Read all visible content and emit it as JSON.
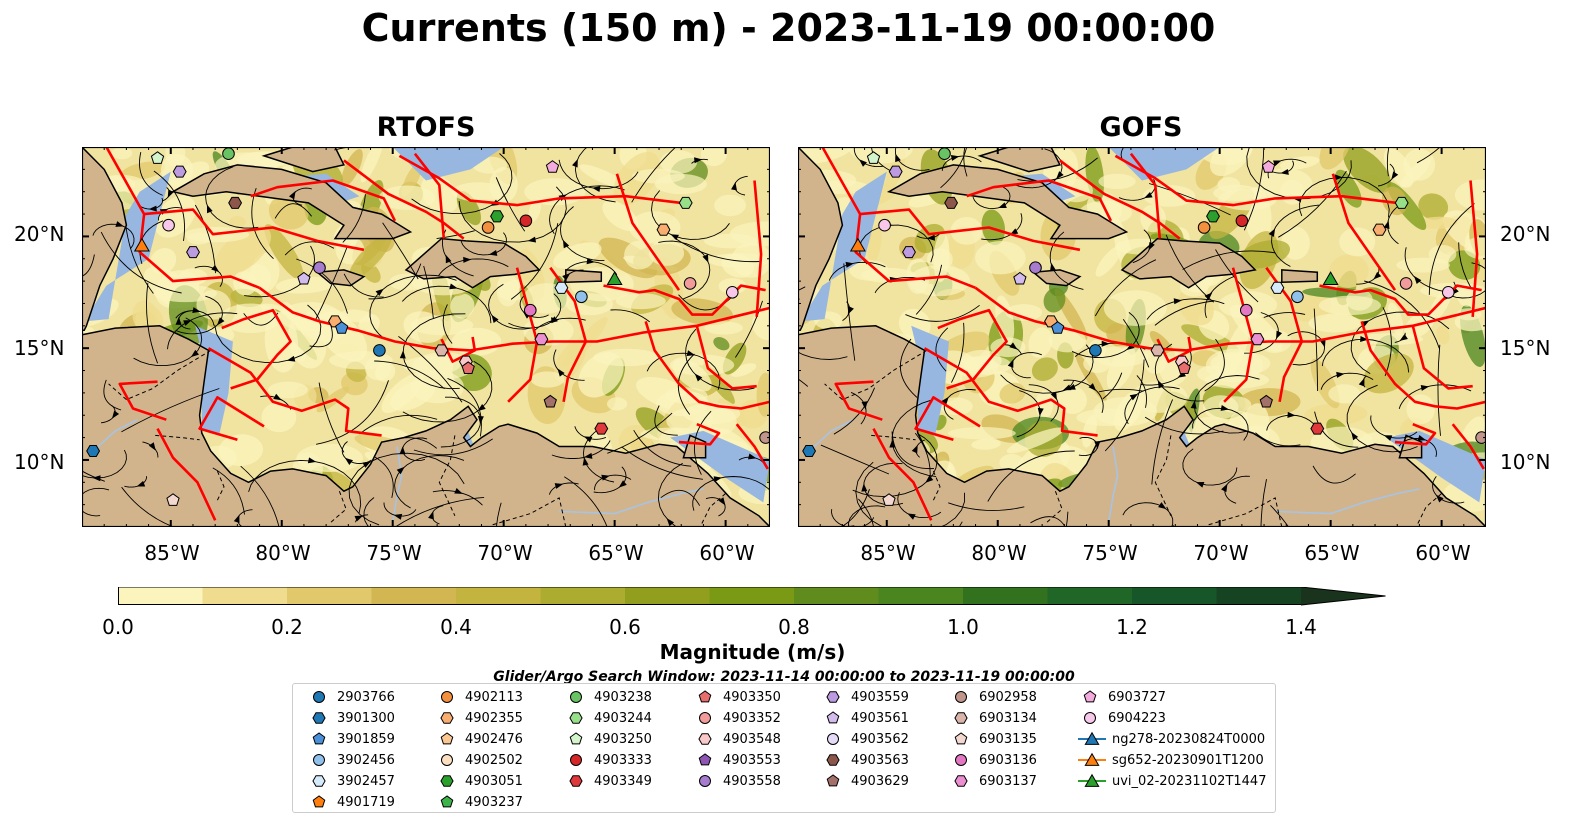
{
  "title": "Currents (150 m) - 2023-11-19 00:00:00",
  "panels": [
    {
      "title": "RTOFS"
    },
    {
      "title": "GOFS"
    }
  ],
  "map": {
    "lon_range": [
      -89,
      -58
    ],
    "lat_range": [
      7,
      24
    ],
    "lat_ticks": [
      "20°N",
      "15°N",
      "10°N"
    ],
    "lon_ticks": [
      "85°W",
      "80°W",
      "75°W",
      "70°W",
      "65°W",
      "60°W"
    ],
    "colors": {
      "ocean_shallow": "#97b6e0",
      "land": "#d2b48c",
      "eez": "#ff0000",
      "stream": "#000000"
    }
  },
  "colorbar": {
    "label": "Magnitude (m/s)",
    "ticks": [
      "0.0",
      "0.2",
      "0.4",
      "0.6",
      "0.8",
      "1.0",
      "1.2",
      "1.4"
    ],
    "range": [
      0,
      1.5
    ],
    "colors": [
      "#fbf4bd",
      "#efdc8f",
      "#e0c86b",
      "#d1b651",
      "#c3b440",
      "#acac30",
      "#929f1e",
      "#7a9a15",
      "#5f8c1c",
      "#4a8520",
      "#32721f",
      "#1f6627",
      "#175628",
      "#164423",
      "#1a331c"
    ]
  },
  "legend": {
    "title": "Glider/Argo Search Window: 2023-11-14 00:00:00 to 2023-11-19 00:00:00",
    "items": [
      {
        "label": "2903766",
        "marker": "circle",
        "color": "#1f77b4"
      },
      {
        "label": "3901300",
        "marker": "hexagon",
        "color": "#1f77b4"
      },
      {
        "label": "3901859",
        "marker": "pentagon",
        "color": "#4a90d9"
      },
      {
        "label": "3902456",
        "marker": "circle",
        "color": "#8fc1ea"
      },
      {
        "label": "3902457",
        "marker": "hexagon",
        "color": "#d6ebfa"
      },
      {
        "label": "4901719",
        "marker": "pentagon",
        "color": "#ff7f0e"
      },
      {
        "label": "4902113",
        "marker": "circle",
        "color": "#f39040"
      },
      {
        "label": "4902355",
        "marker": "hexagon",
        "color": "#f7ae6f"
      },
      {
        "label": "4902476",
        "marker": "pentagon",
        "color": "#fbc894"
      },
      {
        "label": "4902502",
        "marker": "circle",
        "color": "#fde0c2"
      },
      {
        "label": "4903051",
        "marker": "hexagon",
        "color": "#2ca02c"
      },
      {
        "label": "4903237",
        "marker": "pentagon",
        "color": "#3cb44b"
      },
      {
        "label": "4903238",
        "marker": "circle",
        "color": "#69c364"
      },
      {
        "label": "4903244",
        "marker": "hexagon",
        "color": "#98df8a"
      },
      {
        "label": "4903250",
        "marker": "pentagon",
        "color": "#d4f5cc"
      },
      {
        "label": "4903333",
        "marker": "circle",
        "color": "#d62728"
      },
      {
        "label": "4903349",
        "marker": "hexagon",
        "color": "#e0393b"
      },
      {
        "label": "4903350",
        "marker": "pentagon",
        "color": "#e86e6e"
      },
      {
        "label": "4903352",
        "marker": "circle",
        "color": "#f19b9b"
      },
      {
        "label": "4903548",
        "marker": "hexagon",
        "color": "#f9c8c8"
      },
      {
        "label": "4903553",
        "marker": "pentagon",
        "color": "#8e55b5"
      },
      {
        "label": "4903558",
        "marker": "circle",
        "color": "#a77ccf"
      },
      {
        "label": "4903559",
        "marker": "hexagon",
        "color": "#bd9be0"
      },
      {
        "label": "4903561",
        "marker": "pentagon",
        "color": "#d3bbee"
      },
      {
        "label": "4903562",
        "marker": "circle",
        "color": "#e6dbf6"
      },
      {
        "label": "4903563",
        "marker": "hexagon",
        "color": "#8c564b"
      },
      {
        "label": "4903629",
        "marker": "pentagon",
        "color": "#a4706a"
      },
      {
        "label": "6902958",
        "marker": "circle",
        "color": "#c0958c"
      },
      {
        "label": "6903134",
        "marker": "hexagon",
        "color": "#dbb4aa"
      },
      {
        "label": "6903135",
        "marker": "pentagon",
        "color": "#f3d8d0"
      },
      {
        "label": "6903136",
        "marker": "circle",
        "color": "#e377c2"
      },
      {
        "label": "6903137",
        "marker": "hexagon",
        "color": "#ea8fcf"
      },
      {
        "label": "6903727",
        "marker": "pentagon",
        "color": "#f2abdc"
      },
      {
        "label": "6904223",
        "marker": "circle",
        "color": "#f8c8ea"
      },
      {
        "label": "ng278-20230824T0000",
        "marker": "triangle",
        "color": "#1f77b4"
      },
      {
        "label": "sg652-20230901T1200",
        "marker": "triangle",
        "color": "#ff7f0e"
      },
      {
        "label": "uvi_02-20231102T1447",
        "marker": "triangle",
        "color": "#2ca02c"
      }
    ]
  },
  "markers": [
    {
      "id": "4903250",
      "lon": -85.6,
      "lat": 23.5
    },
    {
      "id": "4903559",
      "lon": -84.6,
      "lat": 22.9
    },
    {
      "id": "4903238",
      "lon": -82.4,
      "lat": 23.7
    },
    {
      "id": "4903563",
      "lon": -82.1,
      "lat": 21.5
    },
    {
      "id": "6904223",
      "lon": -85.1,
      "lat": 20.5
    },
    {
      "id": "sg652-20230901T1200",
      "lon": -86.3,
      "lat": 19.6
    },
    {
      "id": "4903561",
      "lon": -79.0,
      "lat": 18.1
    },
    {
      "id": "4903558",
      "lon": -78.3,
      "lat": 18.6
    },
    {
      "id": "4902355",
      "lon": -77.6,
      "lat": 16.2
    },
    {
      "id": "3901859",
      "lon": -77.3,
      "lat": 15.9
    },
    {
      "id": "4903559",
      "lon": -84.0,
      "lat": 19.3
    },
    {
      "id": "2903766",
      "lon": -75.6,
      "lat": 14.9
    },
    {
      "id": "6903134",
      "lon": -72.8,
      "lat": 14.9
    },
    {
      "id": "4903548",
      "lon": -71.7,
      "lat": 14.4
    },
    {
      "id": "4903350",
      "lon": -71.6,
      "lat": 14.1
    },
    {
      "id": "4903051",
      "lon": -70.3,
      "lat": 20.9
    },
    {
      "id": "4902113",
      "lon": -70.7,
      "lat": 20.4
    },
    {
      "id": "4903333",
      "lon": -69.0,
      "lat": 20.7
    },
    {
      "id": "6903727",
      "lon": -67.8,
      "lat": 23.1
    },
    {
      "id": "uvi_02-20231102T1447",
      "lon": -65.0,
      "lat": 18.1
    },
    {
      "id": "3902457",
      "lon": -67.4,
      "lat": 17.7
    },
    {
      "id": "3902456",
      "lon": -66.5,
      "lat": 17.3
    },
    {
      "id": "6903136",
      "lon": -68.8,
      "lat": 16.7
    },
    {
      "id": "6903137",
      "lon": -68.3,
      "lat": 15.4
    },
    {
      "id": "4903629",
      "lon": -67.9,
      "lat": 12.6
    },
    {
      "id": "4903349",
      "lon": -65.6,
      "lat": 11.4
    },
    {
      "id": "4902355",
      "lon": -62.8,
      "lat": 20.3
    },
    {
      "id": "4903244",
      "lon": -61.8,
      "lat": 21.5
    },
    {
      "id": "4903352",
      "lon": -61.6,
      "lat": 17.9
    },
    {
      "id": "6904223",
      "lon": -59.7,
      "lat": 17.5
    },
    {
      "id": "6902958",
      "lon": -58.2,
      "lat": 11.0
    },
    {
      "id": "3901300",
      "lon": -88.5,
      "lat": 10.4
    },
    {
      "id": "6903135",
      "lon": -84.9,
      "lat": 8.2
    }
  ]
}
